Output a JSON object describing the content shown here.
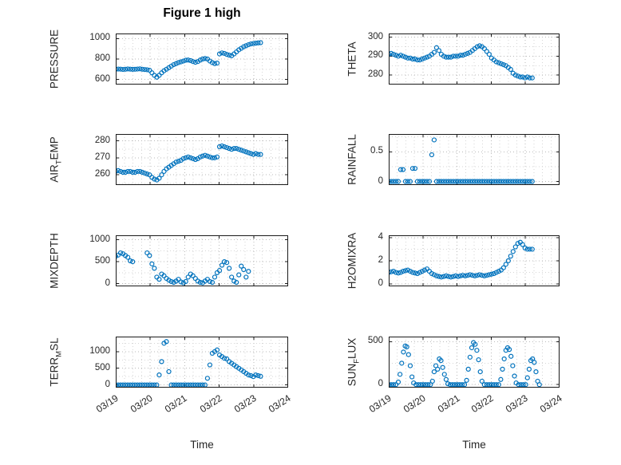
{
  "figure": {
    "title": "Figure 1 high",
    "xlabel": "Time",
    "marker_color": "#0072BD",
    "axis_color": "#1a1a1a",
    "grid_major_color": "#b9b9b9",
    "grid_minor_color": "#d6d6d6",
    "background": "#ffffff"
  },
  "x_axis": {
    "min": 0,
    "max": 5,
    "tick_labels": [
      "03/19",
      "03/20",
      "03/21",
      "03/22",
      "03/23",
      "03/24"
    ]
  },
  "chart_data": [
    {
      "type": "scatter",
      "name": "PRESSURE",
      "label": {
        "pre": "PRESSURE",
        "sub": "",
        "post": ""
      },
      "ylim": [
        550,
        1050
      ],
      "yticks": [
        600,
        800,
        1000
      ],
      "ytick_labels": [
        "600",
        "800",
        "1000"
      ],
      "x": [
        0.0,
        0.07,
        0.14,
        0.21,
        0.28,
        0.35,
        0.42,
        0.49,
        0.56,
        0.63,
        0.7,
        0.77,
        0.84,
        0.91,
        0.98,
        1.05,
        1.12,
        1.19,
        1.26,
        1.33,
        1.4,
        1.47,
        1.54,
        1.61,
        1.68,
        1.75,
        1.82,
        1.89,
        1.96,
        2.03,
        2.1,
        2.17,
        2.24,
        2.31,
        2.38,
        2.45,
        2.52,
        2.59,
        2.66,
        2.73,
        2.8,
        2.87,
        2.94,
        3.01,
        3.08,
        3.15,
        3.22,
        3.29,
        3.36,
        3.43,
        3.5,
        3.57,
        3.64,
        3.71,
        3.78,
        3.85,
        3.92,
        3.99,
        4.06,
        4.13,
        4.2
      ],
      "y": [
        700,
        702,
        701,
        698,
        700,
        703,
        701,
        699,
        700,
        702,
        704,
        700,
        697,
        695,
        690,
        665,
        640,
        622,
        640,
        665,
        685,
        700,
        715,
        730,
        745,
        755,
        765,
        772,
        780,
        788,
        790,
        785,
        775,
        768,
        775,
        790,
        800,
        805,
        800,
        780,
        765,
        755,
        760,
        850,
        860,
        855,
        845,
        838,
        832,
        850,
        870,
        890,
        905,
        920,
        930,
        940,
        948,
        952,
        955,
        958,
        960
      ]
    },
    {
      "type": "scatter",
      "name": "THETA",
      "label": {
        "pre": "THETA",
        "sub": "",
        "post": ""
      },
      "ylim": [
        275,
        302
      ],
      "yticks": [
        280,
        290,
        300
      ],
      "ytick_labels": [
        "280",
        "290",
        "300"
      ],
      "x": [
        0.0,
        0.07,
        0.14,
        0.21,
        0.28,
        0.35,
        0.42,
        0.49,
        0.56,
        0.63,
        0.7,
        0.77,
        0.84,
        0.91,
        0.98,
        1.05,
        1.12,
        1.19,
        1.26,
        1.33,
        1.4,
        1.47,
        1.54,
        1.61,
        1.68,
        1.75,
        1.82,
        1.89,
        1.96,
        2.03,
        2.1,
        2.17,
        2.24,
        2.31,
        2.38,
        2.45,
        2.52,
        2.59,
        2.66,
        2.73,
        2.8,
        2.87,
        2.94,
        3.01,
        3.08,
        3.15,
        3.22,
        3.29,
        3.36,
        3.43,
        3.5,
        3.57,
        3.64,
        3.71,
        3.78,
        3.85,
        3.92,
        3.99,
        4.06,
        4.13,
        4.2
      ],
      "y": [
        291,
        291.5,
        291,
        290.5,
        290,
        290.5,
        290,
        289.5,
        289,
        289,
        288.5,
        288.5,
        288,
        288,
        288.5,
        289,
        289.5,
        290,
        291,
        292,
        294.5,
        293,
        291,
        290,
        289.5,
        289.5,
        289.5,
        290,
        290,
        290,
        290.5,
        290.5,
        291,
        291.5,
        292,
        293,
        294,
        295,
        295.5,
        295,
        294,
        292.5,
        291,
        289,
        288,
        287,
        286.5,
        286,
        285.5,
        285,
        284,
        283,
        281,
        280,
        279.5,
        279,
        279,
        278.5,
        279,
        278.5,
        278.5
      ]
    },
    {
      "type": "scatter",
      "name": "AIR_TEMP",
      "label": {
        "pre": "AIR",
        "sub": "T",
        "post": "EMP"
      },
      "ylim": [
        254,
        284
      ],
      "yticks": [
        260,
        270,
        280
      ],
      "ytick_labels": [
        "260",
        "270",
        "280"
      ],
      "x": [
        0.0,
        0.07,
        0.14,
        0.21,
        0.28,
        0.35,
        0.42,
        0.49,
        0.56,
        0.63,
        0.7,
        0.77,
        0.84,
        0.91,
        0.98,
        1.05,
        1.12,
        1.19,
        1.26,
        1.33,
        1.4,
        1.47,
        1.54,
        1.61,
        1.68,
        1.75,
        1.82,
        1.89,
        1.96,
        2.03,
        2.1,
        2.17,
        2.24,
        2.31,
        2.38,
        2.45,
        2.52,
        2.59,
        2.66,
        2.73,
        2.8,
        2.87,
        2.94,
        3.01,
        3.08,
        3.15,
        3.22,
        3.29,
        3.36,
        3.43,
        3.5,
        3.57,
        3.64,
        3.71,
        3.78,
        3.85,
        3.92,
        3.99,
        4.06,
        4.13,
        4.2
      ],
      "y": [
        262,
        262.5,
        262,
        261.5,
        261.5,
        262,
        262,
        261.5,
        261.5,
        262,
        262,
        261.5,
        261,
        260.5,
        260,
        258.5,
        257.5,
        257,
        258,
        260,
        262,
        263.5,
        264.5,
        265.5,
        266.5,
        267.5,
        268,
        268.5,
        269.5,
        270,
        270.5,
        270,
        269.5,
        269,
        269.5,
        270.5,
        271,
        271.5,
        271,
        270.5,
        270,
        270,
        270.5,
        276.5,
        277,
        276.5,
        276,
        275.5,
        275,
        275.5,
        275.5,
        275,
        274.5,
        274,
        273.5,
        273,
        272.5,
        272,
        272.5,
        272,
        272
      ]
    },
    {
      "type": "scatter",
      "name": "RAINFALL",
      "label": {
        "pre": "RAINFALL",
        "sub": "",
        "post": ""
      },
      "ylim": [
        -0.06,
        0.8
      ],
      "yticks": [
        0,
        0.5
      ],
      "ytick_labels": [
        "0",
        "0.5"
      ],
      "x": [
        0.0,
        0.07,
        0.14,
        0.21,
        0.28,
        0.35,
        0.42,
        0.49,
        0.56,
        0.63,
        0.7,
        0.77,
        0.84,
        0.91,
        0.98,
        1.05,
        1.12,
        1.19,
        1.26,
        1.33,
        1.4,
        1.47,
        1.54,
        1.61,
        1.68,
        1.75,
        1.82,
        1.89,
        1.96,
        2.03,
        2.1,
        2.17,
        2.24,
        2.31,
        2.38,
        2.45,
        2.52,
        2.59,
        2.66,
        2.73,
        2.8,
        2.87,
        2.94,
        3.01,
        3.08,
        3.15,
        3.22,
        3.29,
        3.36,
        3.43,
        3.5,
        3.57,
        3.64,
        3.71,
        3.78,
        3.85,
        3.92,
        3.99,
        4.06,
        4.13,
        4.2
      ],
      "y": [
        0,
        0,
        0,
        0,
        0,
        0.2,
        0.2,
        0,
        0,
        0,
        0.22,
        0.22,
        0,
        0,
        0,
        0,
        0,
        0,
        0.45,
        0.7,
        0,
        0,
        0,
        0,
        0,
        0,
        0,
        0,
        0,
        0,
        0,
        0,
        0,
        0,
        0,
        0,
        0,
        0,
        0,
        0,
        0,
        0,
        0,
        0,
        0,
        0,
        0,
        0,
        0,
        0,
        0,
        0,
        0,
        0,
        0,
        0,
        0,
        0,
        0,
        0,
        0
      ]
    },
    {
      "type": "scatter",
      "name": "MIXDEPTH",
      "label": {
        "pre": "MIXDEPTH",
        "sub": "",
        "post": ""
      },
      "ylim": [
        -60,
        1100
      ],
      "yticks": [
        0,
        500,
        1000
      ],
      "ytick_labels": [
        "0",
        "500",
        "1000"
      ],
      "x": [
        0.0,
        0.07,
        0.14,
        0.21,
        0.28,
        0.35,
        0.42,
        0.49,
        0.91,
        0.98,
        1.05,
        1.12,
        1.19,
        1.26,
        1.33,
        1.4,
        1.47,
        1.54,
        1.61,
        1.68,
        1.75,
        1.82,
        1.89,
        1.96,
        2.03,
        2.1,
        2.17,
        2.24,
        2.31,
        2.38,
        2.45,
        2.52,
        2.59,
        2.66,
        2.73,
        2.8,
        2.87,
        2.94,
        3.01,
        3.08,
        3.15,
        3.22,
        3.29,
        3.36,
        3.43,
        3.5,
        3.57,
        3.64,
        3.71,
        3.78,
        3.85
      ],
      "y": [
        620,
        650,
        700,
        680,
        640,
        600,
        520,
        500,
        700,
        640,
        450,
        350,
        150,
        100,
        220,
        180,
        120,
        80,
        50,
        30,
        60,
        100,
        40,
        20,
        50,
        150,
        220,
        180,
        120,
        60,
        30,
        20,
        60,
        100,
        50,
        30,
        150,
        250,
        300,
        420,
        500,
        480,
        350,
        150,
        60,
        30,
        200,
        400,
        320,
        150,
        280
      ]
    },
    {
      "type": "scatter",
      "name": "H2OMIXRA",
      "label": {
        "pre": "H2OMIXRA",
        "sub": "",
        "post": ""
      },
      "ylim": [
        -0.2,
        4.2
      ],
      "yticks": [
        0,
        2,
        4
      ],
      "ytick_labels": [
        "0",
        "2",
        "4"
      ],
      "x": [
        0.0,
        0.07,
        0.14,
        0.21,
        0.28,
        0.35,
        0.42,
        0.49,
        0.56,
        0.63,
        0.7,
        0.77,
        0.84,
        0.91,
        0.98,
        1.05,
        1.12,
        1.19,
        1.26,
        1.33,
        1.4,
        1.47,
        1.54,
        1.61,
        1.68,
        1.75,
        1.82,
        1.89,
        1.96,
        2.03,
        2.1,
        2.17,
        2.24,
        2.31,
        2.38,
        2.45,
        2.52,
        2.59,
        2.66,
        2.73,
        2.8,
        2.87,
        2.94,
        3.01,
        3.08,
        3.15,
        3.22,
        3.29,
        3.36,
        3.43,
        3.5,
        3.57,
        3.64,
        3.71,
        3.78,
        3.85,
        3.92,
        3.99,
        4.06,
        4.13,
        4.2
      ],
      "y": [
        1.0,
        1.05,
        1.1,
        1.0,
        0.95,
        1.0,
        1.1,
        1.15,
        1.2,
        1.1,
        1.0,
        0.95,
        0.9,
        1.0,
        1.1,
        1.2,
        1.3,
        1.1,
        0.9,
        0.8,
        0.7,
        0.65,
        0.6,
        0.65,
        0.7,
        0.65,
        0.6,
        0.65,
        0.7,
        0.65,
        0.7,
        0.75,
        0.7,
        0.75,
        0.8,
        0.75,
        0.7,
        0.75,
        0.8,
        0.75,
        0.7,
        0.75,
        0.8,
        0.85,
        0.9,
        1.0,
        1.1,
        1.2,
        1.4,
        1.7,
        2.0,
        2.4,
        2.8,
        3.2,
        3.5,
        3.6,
        3.4,
        3.1,
        3.0,
        3.0,
        3.0
      ]
    },
    {
      "type": "scatter",
      "name": "TERR_MSL",
      "label": {
        "pre": "TERR",
        "sub": "M",
        "post": "SL"
      },
      "ylim": [
        -80,
        1450
      ],
      "yticks": [
        0,
        500,
        1000
      ],
      "ytick_labels": [
        "0",
        "500",
        "1000"
      ],
      "x": [
        0.0,
        0.07,
        0.14,
        0.21,
        0.28,
        0.35,
        0.42,
        0.49,
        0.56,
        0.63,
        0.7,
        0.77,
        0.84,
        0.91,
        0.98,
        1.05,
        1.12,
        1.19,
        1.26,
        1.33,
        1.4,
        1.47,
        1.54,
        1.61,
        1.68,
        1.75,
        1.82,
        1.89,
        1.96,
        2.03,
        2.1,
        2.17,
        2.24,
        2.31,
        2.38,
        2.45,
        2.52,
        2.59,
        2.66,
        2.73,
        2.8,
        2.87,
        2.94,
        3.01,
        3.08,
        3.15,
        3.22,
        3.29,
        3.36,
        3.43,
        3.5,
        3.57,
        3.64,
        3.71,
        3.78,
        3.85,
        3.92,
        3.99,
        4.06,
        4.13,
        4.2
      ],
      "y": [
        0,
        0,
        0,
        0,
        0,
        0,
        0,
        0,
        0,
        0,
        0,
        0,
        0,
        0,
        0,
        0,
        0,
        0,
        300,
        700,
        1250,
        1300,
        400,
        0,
        0,
        0,
        0,
        0,
        0,
        0,
        0,
        0,
        0,
        0,
        0,
        0,
        0,
        0,
        200,
        600,
        950,
        1000,
        1050,
        900,
        850,
        800,
        780,
        700,
        650,
        600,
        550,
        500,
        450,
        400,
        350,
        300,
        280,
        250,
        300,
        280,
        260
      ]
    },
    {
      "type": "scatter",
      "name": "SUN_FLUX",
      "label": {
        "pre": "SUN",
        "sub": "F",
        "post": "LUX"
      },
      "ylim": [
        -35,
        560
      ],
      "yticks": [
        0,
        500
      ],
      "ytick_labels": [
        "0",
        "500"
      ],
      "x": [
        0.0,
        0.07,
        0.14,
        0.21,
        0.28,
        0.33,
        0.38,
        0.43,
        0.48,
        0.53,
        0.58,
        0.63,
        0.68,
        0.73,
        0.8,
        0.87,
        0.94,
        1.01,
        1.08,
        1.15,
        1.22,
        1.28,
        1.33,
        1.38,
        1.43,
        1.48,
        1.53,
        1.58,
        1.63,
        1.68,
        1.73,
        1.8,
        1.87,
        1.94,
        2.01,
        2.08,
        2.15,
        2.22,
        2.28,
        2.33,
        2.38,
        2.43,
        2.48,
        2.53,
        2.58,
        2.63,
        2.68,
        2.73,
        2.8,
        2.87,
        2.94,
        3.01,
        3.08,
        3.15,
        3.22,
        3.28,
        3.33,
        3.38,
        3.43,
        3.48,
        3.53,
        3.58,
        3.63,
        3.68,
        3.73,
        3.8,
        3.87,
        3.94,
        4.01,
        4.06,
        4.11,
        4.16,
        4.21,
        4.26,
        4.31,
        4.36,
        4.41
      ],
      "y": [
        0,
        0,
        0,
        0,
        30,
        120,
        250,
        380,
        450,
        440,
        350,
        220,
        90,
        20,
        0,
        0,
        0,
        0,
        0,
        0,
        0,
        40,
        150,
        220,
        180,
        300,
        280,
        200,
        120,
        60,
        10,
        0,
        0,
        0,
        0,
        0,
        0,
        0,
        50,
        180,
        320,
        430,
        490,
        470,
        400,
        290,
        150,
        40,
        0,
        0,
        0,
        0,
        0,
        0,
        0,
        60,
        180,
        300,
        400,
        430,
        410,
        330,
        220,
        100,
        20,
        0,
        0,
        0,
        0,
        80,
        180,
        280,
        300,
        260,
        150,
        40,
        0
      ]
    }
  ]
}
